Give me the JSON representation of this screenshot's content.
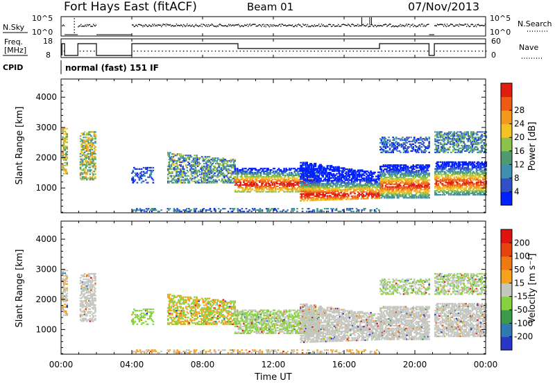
{
  "header": {
    "station": "Fort Hays East (fitACF)",
    "beam": "Beam 01",
    "date": "07/Nov/2013"
  },
  "summary": {
    "nsky_label": "N.Sky",
    "nsky_ticks": [
      "10^5",
      "10^0"
    ],
    "nsearch_label": "N.Search",
    "freq_label": "Freq.",
    "freq_unit": "[MHz]",
    "freq_ticks": [
      "18",
      "8"
    ],
    "nave_label": "Nave",
    "nave_ticks": [
      "60",
      "0"
    ],
    "cpid_label": "CPID",
    "cpid_text": "normal (fast) 151 IF",
    "colors": {
      "line": "#000000"
    }
  },
  "chart_data": [
    {
      "type": "heatmap",
      "name": "power",
      "ylabel": "Slant Range [km]",
      "ylim": [
        180,
        4600
      ],
      "xlim": [
        0,
        24
      ],
      "y_ticks": [
        1000,
        2000,
        3000,
        4000
      ],
      "y_tick_labels": [
        "1000",
        "2000",
        "3000",
        "4000"
      ],
      "colorbar": {
        "label": "Power [dB]",
        "ticks": [
          "4",
          "8",
          "12",
          "16",
          "20",
          "24",
          "28"
        ],
        "colors": [
          "#0020ff",
          "#3050c8",
          "#3f8fb0",
          "#4f9a70",
          "#8dc24a",
          "#f5c224",
          "#f39a1c",
          "#ef5a14",
          "#e11d10"
        ]
      }
    },
    {
      "type": "heatmap",
      "name": "velocity",
      "ylabel": "Slant Range [km]",
      "ylim": [
        180,
        4600
      ],
      "xlim": [
        0,
        24
      ],
      "y_ticks": [
        1000,
        2000,
        3000,
        4000
      ],
      "y_tick_labels": [
        "1000",
        "2000",
        "3000",
        "4000"
      ],
      "colorbar": {
        "label": "Velocity [m s⁻¹]",
        "ticks": [
          "200",
          "100",
          "50",
          "15",
          "-15",
          "-50",
          "-100",
          "-200"
        ],
        "colors": [
          "#2a36c8",
          "#2f7ab0",
          "#3c9a4a",
          "#86d23e",
          "#c6c6c0",
          "#f5a21c",
          "#ef7a14",
          "#e8420e",
          "#e0140e"
        ]
      }
    }
  ],
  "x_axis": {
    "label": "Time UT",
    "ticks": [
      "00:00",
      "04:00",
      "08:00",
      "12:00",
      "16:00",
      "20:00",
      "00:00"
    ],
    "tick_hours": [
      0,
      4,
      8,
      12,
      16,
      20,
      24
    ]
  }
}
